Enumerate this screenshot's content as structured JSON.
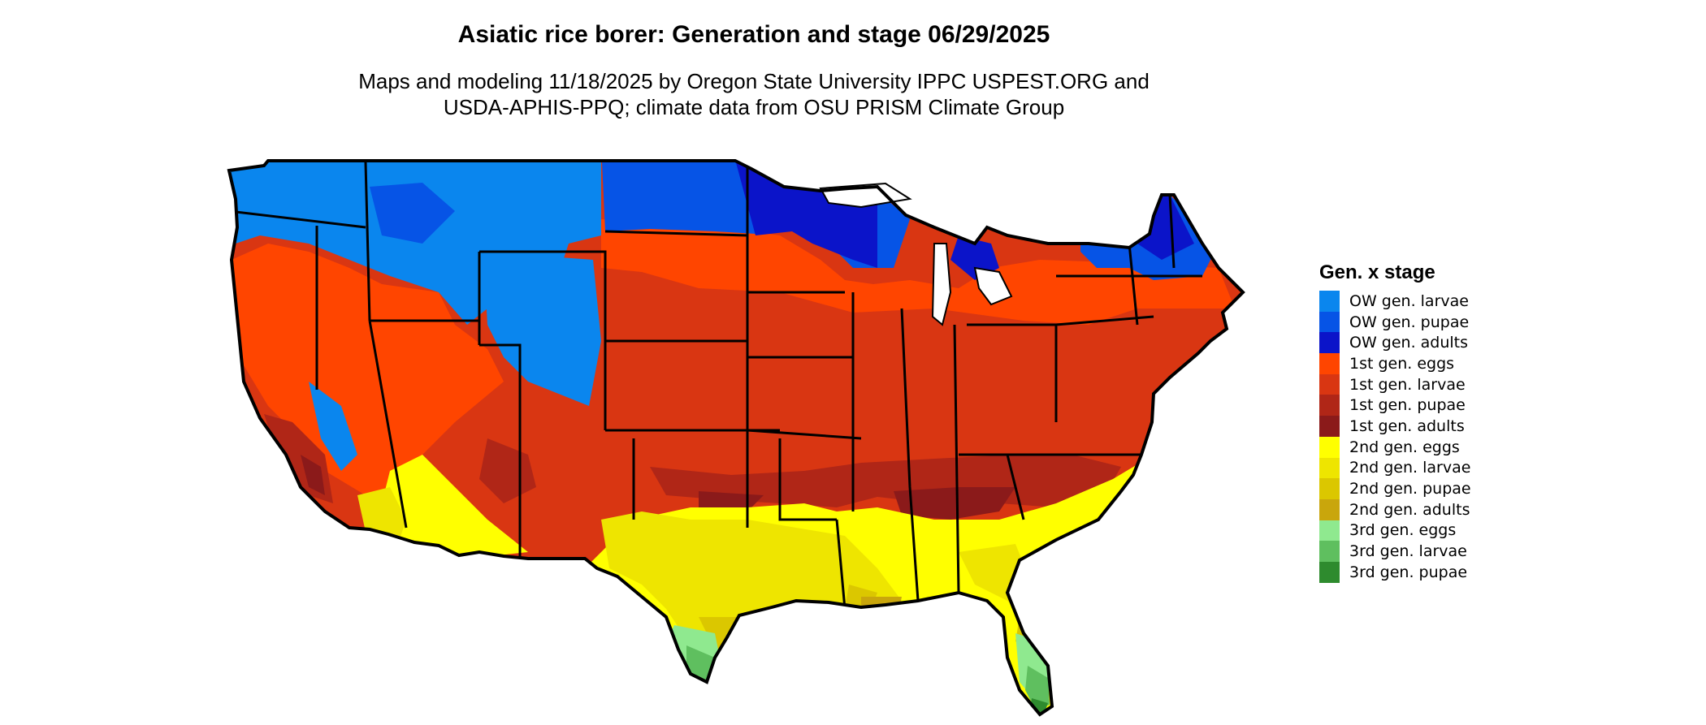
{
  "title": "Asiatic rice borer: Generation and stage 06/29/2025",
  "subtitle_line1": "Maps and modeling 11/18/2025 by Oregon State University IPPC USPEST.ORG and",
  "subtitle_line2": "USDA-APHIS-PPQ; climate data from OSU PRISM Climate Group",
  "legend": {
    "title": "Gen. x stage",
    "items": [
      {
        "label": "OW gen. larvae",
        "color": "#0a86ee"
      },
      {
        "label": "OW gen. pupae",
        "color": "#0654e6"
      },
      {
        "label": "OW gen. adults",
        "color": "#0b14c9"
      },
      {
        "label": "1st gen. eggs",
        "color": "#ff4500"
      },
      {
        "label": "1st gen. larvae",
        "color": "#d93612"
      },
      {
        "label": "1st gen. pupae",
        "color": "#b02617"
      },
      {
        "label": "1st gen. adults",
        "color": "#8b1a1a"
      },
      {
        "label": "2nd gen. eggs",
        "color": "#ffff00"
      },
      {
        "label": "2nd gen. larvae",
        "color": "#eee500"
      },
      {
        "label": "2nd gen. pupae",
        "color": "#dbc700"
      },
      {
        "label": "2nd gen. adults",
        "color": "#c9a60c"
      },
      {
        "label": "3rd gen. eggs",
        "color": "#8fe98f"
      },
      {
        "label": "3rd gen. larvae",
        "color": "#5fbf5f"
      },
      {
        "label": "3rd gen. pupae",
        "color": "#2e8b2e"
      }
    ]
  }
}
